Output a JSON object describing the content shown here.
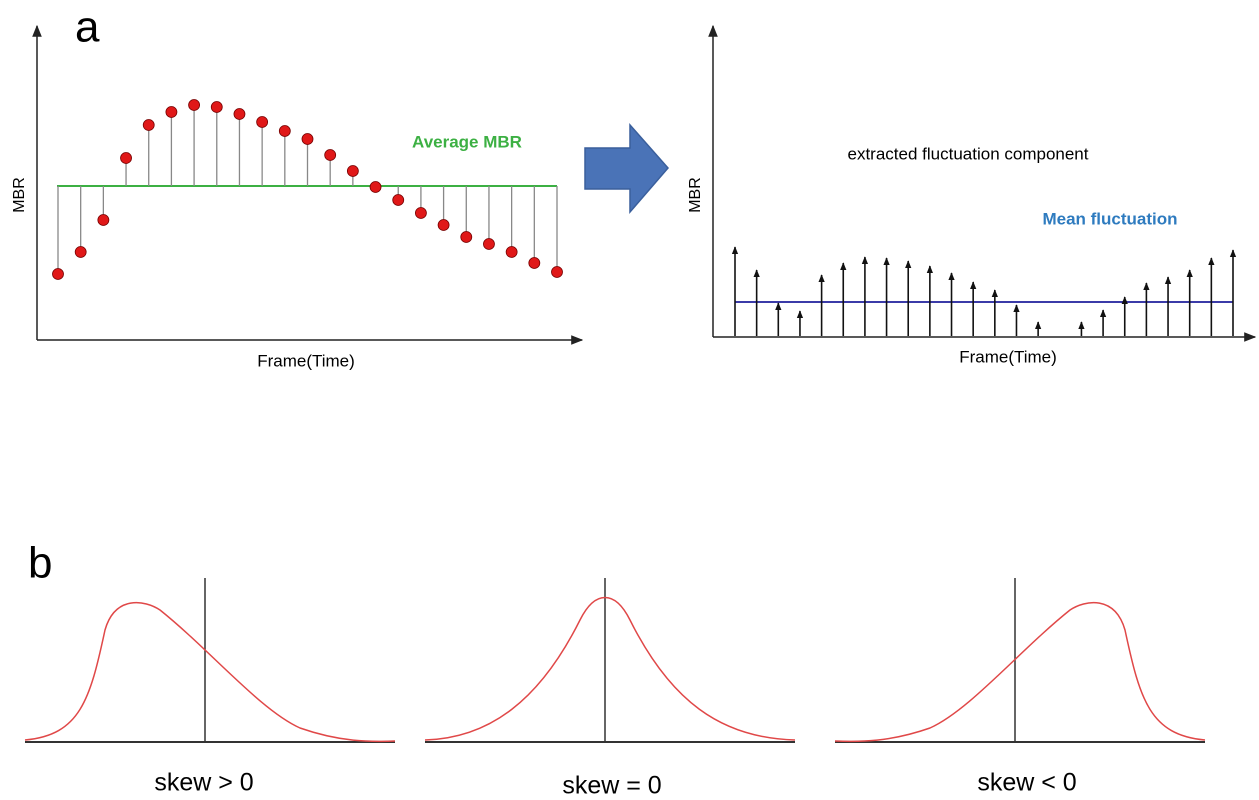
{
  "panel_a": {
    "letter": "a",
    "left": {
      "y_label": "MBR",
      "x_label": "Frame(Time)",
      "annotation": "Average MBR"
    },
    "right": {
      "y_label": "MBR",
      "x_label": "Frame(Time)",
      "title": "extracted fluctuation component",
      "annotation": "Mean fluctuation"
    }
  },
  "panel_b": {
    "letter": "b",
    "labels": [
      "skew > 0",
      "skew = 0",
      "skew < 0"
    ]
  }
}
